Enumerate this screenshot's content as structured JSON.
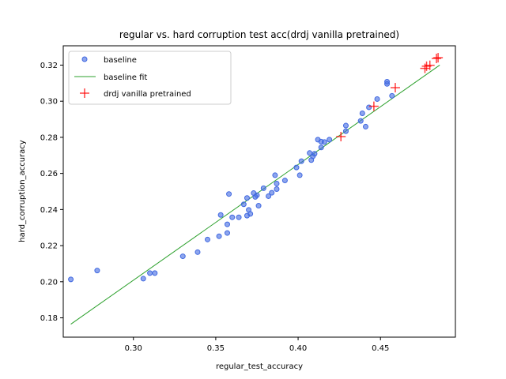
{
  "chart_data": {
    "type": "scatter",
    "title": "regular vs. hard corruption test acc(drdj vanilla pretrained)",
    "xlabel": "regular_test_accuracy",
    "ylabel": "hard_corruption_accuracy",
    "xlim": [
      0.2574,
      0.4955
    ],
    "ylim": [
      0.1693,
      0.3307
    ],
    "xticks": [
      0.3,
      0.35,
      0.4,
      0.45
    ],
    "xtick_labels": [
      "0.30",
      "0.35",
      "0.40",
      "0.45"
    ],
    "yticks": [
      0.18,
      0.2,
      0.22,
      0.24,
      0.26,
      0.28,
      0.3,
      0.32
    ],
    "yticks_labels": [
      "0.18",
      "0.20",
      "0.22",
      "0.24",
      "0.26",
      "0.28",
      "0.30",
      "0.32"
    ],
    "grid": false,
    "legend_position": "top-left",
    "legend": [
      "baseline",
      "baseline fit",
      "drdj vanilla pretrained"
    ],
    "colors": {
      "baseline": "#4169e1",
      "baseline_fit": "#2ca02c",
      "drdj": "#ff0000"
    },
    "series": [
      {
        "name": "baseline",
        "kind": "scatter",
        "points": [
          [
            0.262,
            0.2013
          ],
          [
            0.278,
            0.2062
          ],
          [
            0.306,
            0.2017
          ],
          [
            0.31,
            0.2048
          ],
          [
            0.313,
            0.2048
          ],
          [
            0.33,
            0.2141
          ],
          [
            0.339,
            0.2164
          ],
          [
            0.345,
            0.2234
          ],
          [
            0.352,
            0.2252
          ],
          [
            0.357,
            0.227
          ],
          [
            0.353,
            0.237
          ],
          [
            0.357,
            0.2318
          ],
          [
            0.358,
            0.2486
          ],
          [
            0.36,
            0.2357
          ],
          [
            0.364,
            0.2357
          ],
          [
            0.367,
            0.2429
          ],
          [
            0.369,
            0.2464
          ],
          [
            0.369,
            0.2366
          ],
          [
            0.37,
            0.2398
          ],
          [
            0.371,
            0.2376
          ],
          [
            0.373,
            0.2491
          ],
          [
            0.374,
            0.247
          ],
          [
            0.375,
            0.2479
          ],
          [
            0.376,
            0.2421
          ],
          [
            0.379,
            0.2518
          ],
          [
            0.382,
            0.2474
          ],
          [
            0.384,
            0.2493
          ],
          [
            0.386,
            0.259
          ],
          [
            0.387,
            0.2544
          ],
          [
            0.387,
            0.2513
          ],
          [
            0.392,
            0.2561
          ],
          [
            0.399,
            0.2633
          ],
          [
            0.401,
            0.259
          ],
          [
            0.402,
            0.2668
          ],
          [
            0.407,
            0.2713
          ],
          [
            0.408,
            0.2674
          ],
          [
            0.409,
            0.2695
          ],
          [
            0.41,
            0.2709
          ],
          [
            0.412,
            0.2787
          ],
          [
            0.414,
            0.2744
          ],
          [
            0.414,
            0.2776
          ],
          [
            0.416,
            0.2774
          ],
          [
            0.419,
            0.2787
          ],
          [
            0.429,
            0.2834
          ],
          [
            0.429,
            0.2865
          ],
          [
            0.438,
            0.2891
          ],
          [
            0.439,
            0.2933
          ],
          [
            0.441,
            0.2859
          ],
          [
            0.443,
            0.2966
          ],
          [
            0.448,
            0.3012
          ],
          [
            0.454,
            0.3096
          ],
          [
            0.454,
            0.3108
          ],
          [
            0.457,
            0.303
          ]
        ]
      },
      {
        "name": "baseline fit",
        "kind": "line",
        "points": [
          [
            0.262,
            0.1765
          ],
          [
            0.486,
            0.32
          ]
        ]
      },
      {
        "name": "drdj vanilla pretrained",
        "kind": "scatter",
        "points": [
          [
            0.426,
            0.2804
          ],
          [
            0.446,
            0.2972
          ],
          [
            0.459,
            0.3075
          ],
          [
            0.477,
            0.3182
          ],
          [
            0.478,
            0.3194
          ],
          [
            0.48,
            0.3199
          ],
          [
            0.484,
            0.3237
          ],
          [
            0.485,
            0.3241
          ]
        ]
      }
    ]
  }
}
